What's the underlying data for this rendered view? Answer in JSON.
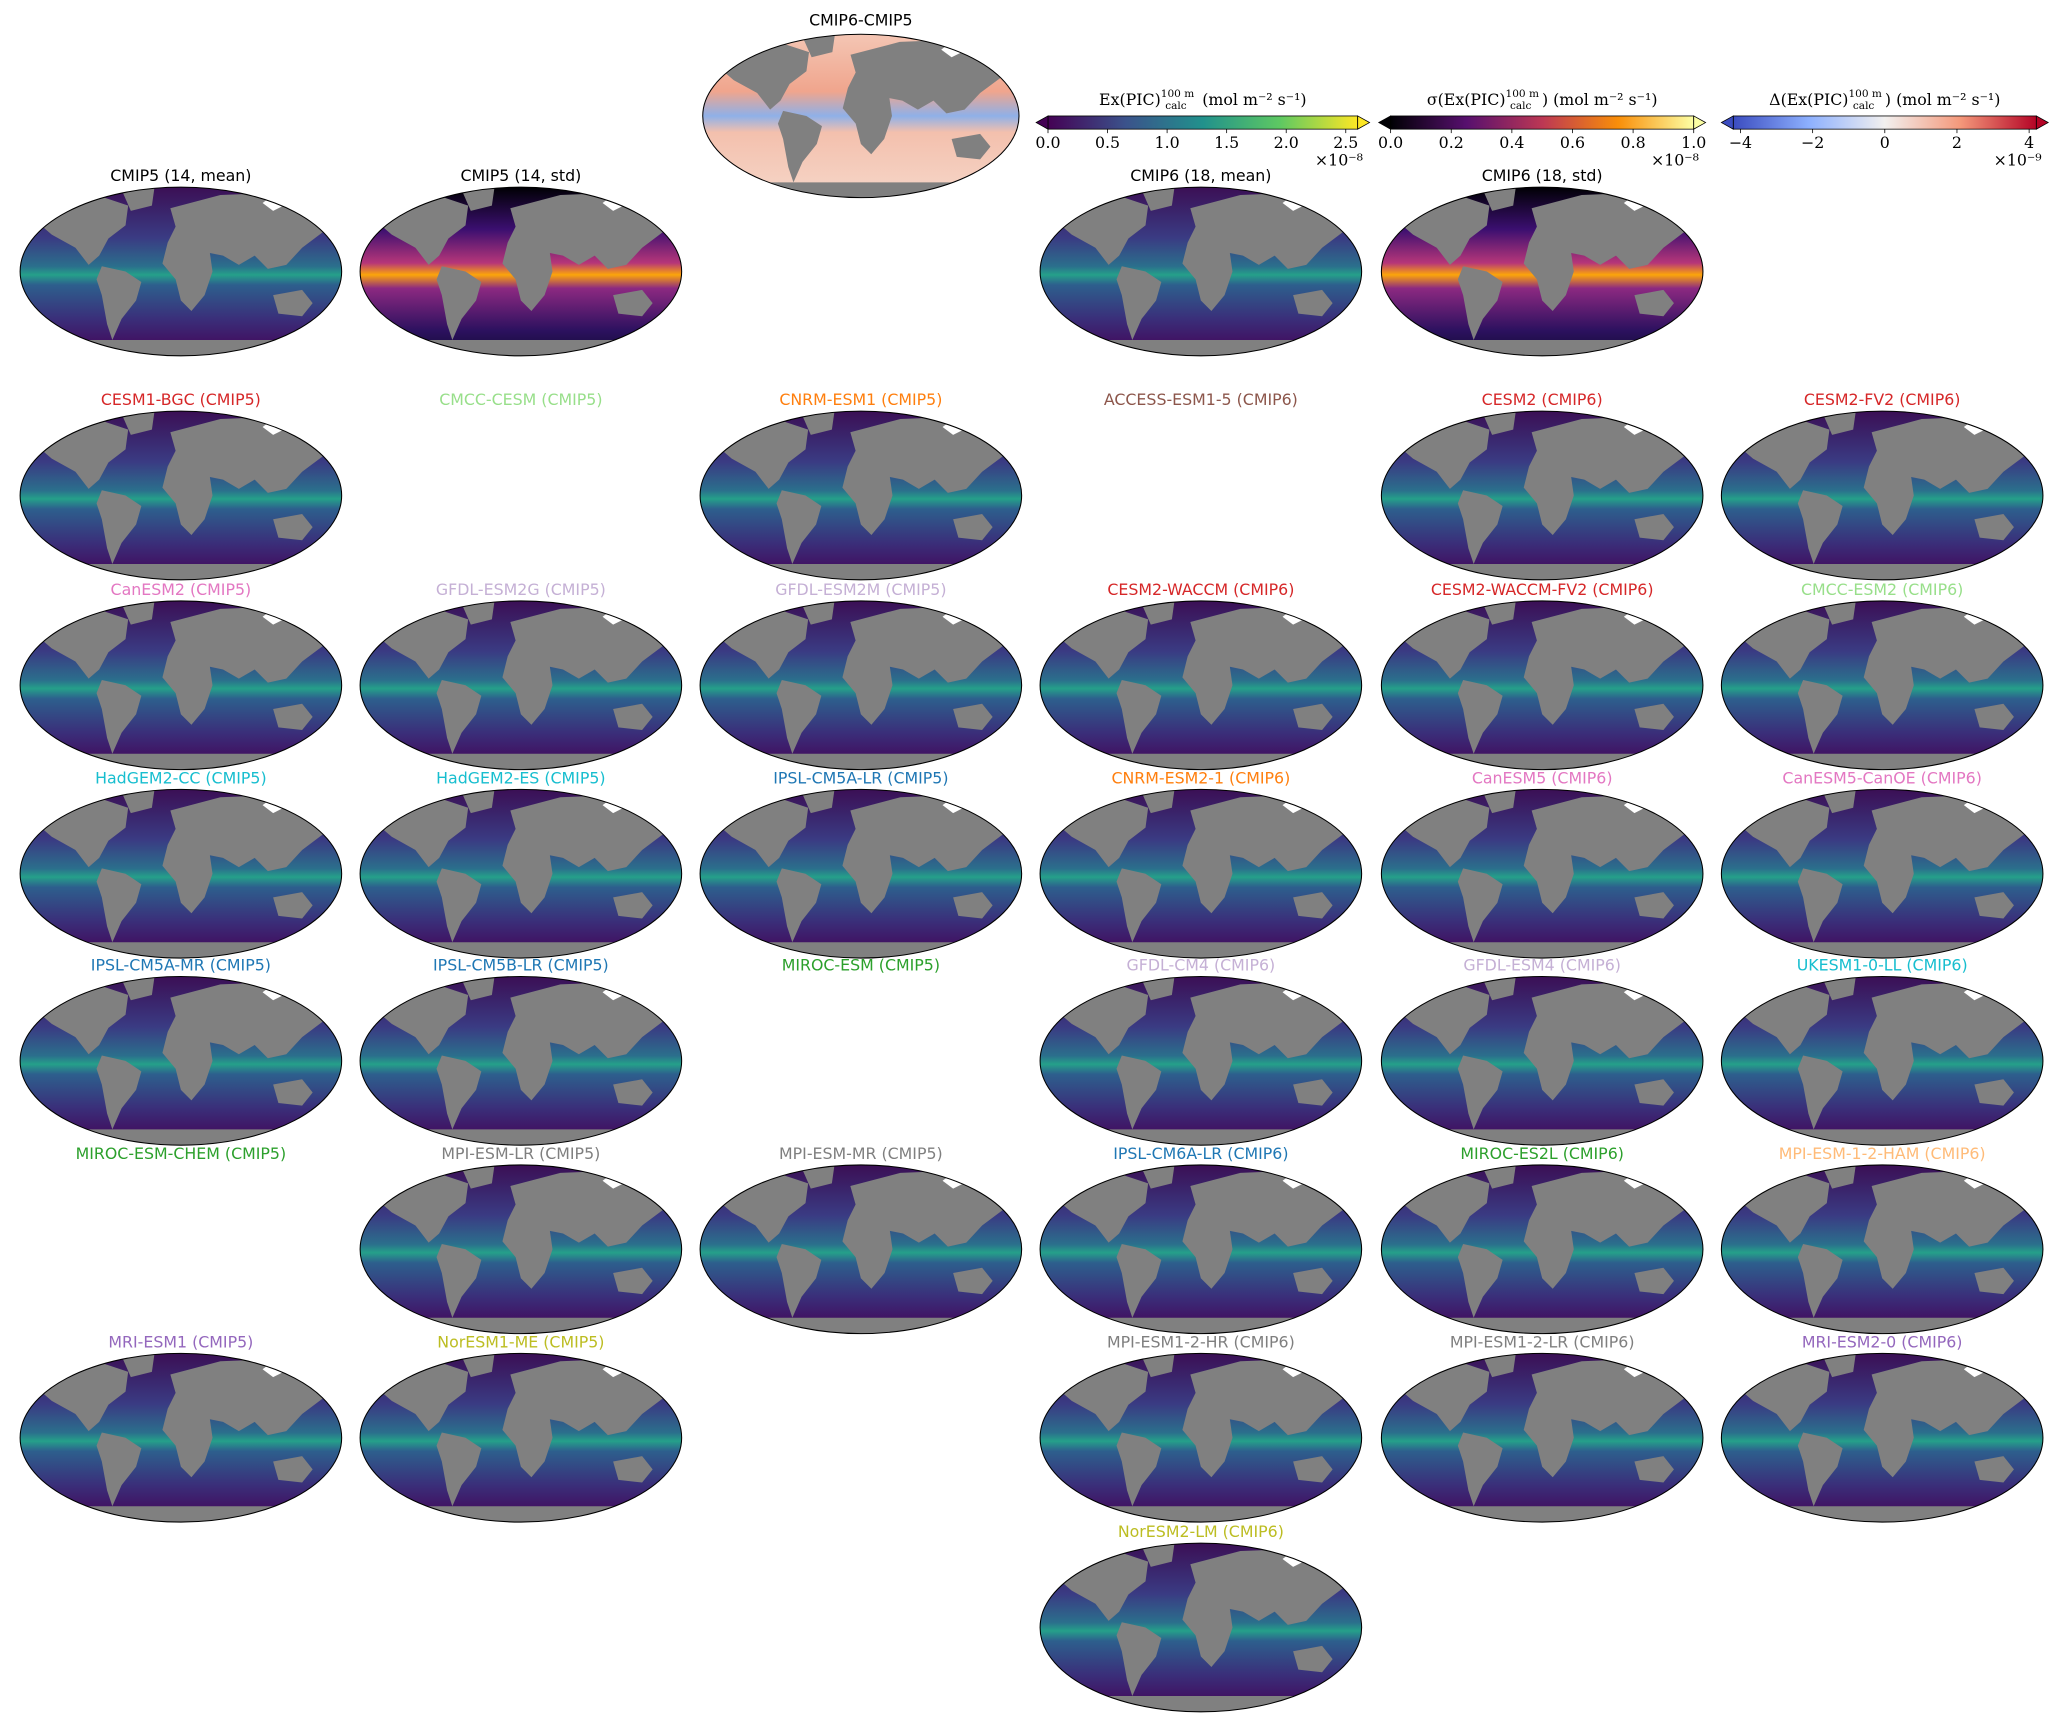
{
  "difference": {
    "title": "CMIP6-CMIP5",
    "cmap": "diff"
  },
  "colorbars": [
    {
      "pre": "Ex(PIC)",
      "sup": "100 m",
      "sub": "calc",
      "post": " (mol m⁻² s⁻¹)",
      "multiplier": "×10⁻⁸",
      "cmap": "viridis",
      "lim": [
        0,
        2.6
      ],
      "ticks": [
        {
          "value": 0,
          "label": "0.0"
        },
        {
          "value": 0.5,
          "label": "0.5"
        },
        {
          "value": 1,
          "label": "1.0"
        },
        {
          "value": 1.5,
          "label": "1.5"
        },
        {
          "value": 2,
          "label": "2.0"
        },
        {
          "value": 2.5,
          "label": "2.5"
        }
      ]
    },
    {
      "pre": "σ(Ex(PIC)",
      "sup": "100 m",
      "sub": "calc",
      "post": ") (mol m⁻² s⁻¹)",
      "multiplier": "×10⁻⁸",
      "cmap": "inferno",
      "lim": [
        0,
        1.0
      ],
      "ticks": [
        {
          "value": 0,
          "label": "0.0"
        },
        {
          "value": 0.2,
          "label": "0.2"
        },
        {
          "value": 0.4,
          "label": "0.4"
        },
        {
          "value": 0.6,
          "label": "0.6"
        },
        {
          "value": 0.8,
          "label": "0.8"
        },
        {
          "value": 1,
          "label": "1.0"
        }
      ]
    },
    {
      "pre": "Δ(Ex(PIC)",
      "sup": "100 m",
      "sub": "calc",
      "post": ") (mol m⁻² s⁻¹)",
      "multiplier": "×10⁻⁹",
      "cmap": "diff",
      "lim": [
        -4.2,
        4.2
      ],
      "ticks": [
        {
          "value": -4,
          "label": "−4"
        },
        {
          "value": -2,
          "label": "−2"
        },
        0,
        2,
        4
      ]
    }
  ],
  "rows": [
    [
      {
        "title": "CMIP5 (14, mean)",
        "color": "#000000",
        "map": true,
        "cmap": "viridis"
      },
      {
        "title": "CMIP5 (14, std)",
        "color": "#000000",
        "map": true,
        "cmap": "inferno"
      },
      null,
      {
        "title": "CMIP6 (18, mean)",
        "color": "#000000",
        "map": true,
        "cmap": "viridis"
      },
      {
        "title": "CMIP6 (18, std)",
        "color": "#000000",
        "map": true,
        "cmap": "inferno"
      },
      null
    ],
    [
      {
        "title": "CESM1-BGC (CMIP5)",
        "color": "#d62728",
        "map": true,
        "cmap": "viridis"
      },
      {
        "title": "CMCC-CESM (CMIP5)",
        "color": "#98df8a",
        "map": false
      },
      {
        "title": "CNRM-ESM1 (CMIP5)",
        "color": "#ff7f0e",
        "map": true,
        "cmap": "viridis"
      },
      {
        "title": "ACCESS-ESM1-5 (CMIP6)",
        "color": "#8c564b",
        "map": false
      },
      {
        "title": "CESM2 (CMIP6)",
        "color": "#d62728",
        "map": true,
        "cmap": "viridis"
      },
      {
        "title": "CESM2-FV2 (CMIP6)",
        "color": "#d62728",
        "map": true,
        "cmap": "viridis"
      }
    ],
    [
      {
        "title": "CanESM2 (CMIP5)",
        "color": "#e377c2",
        "map": true,
        "cmap": "viridis"
      },
      {
        "title": "GFDL-ESM2G (CMIP5)",
        "color": "#c5b0d5",
        "map": true,
        "cmap": "viridis"
      },
      {
        "title": "GFDL-ESM2M (CMIP5)",
        "color": "#c5b0d5",
        "map": true,
        "cmap": "viridis"
      },
      {
        "title": "CESM2-WACCM (CMIP6)",
        "color": "#d62728",
        "map": true,
        "cmap": "viridis"
      },
      {
        "title": "CESM2-WACCM-FV2 (CMIP6)",
        "color": "#d62728",
        "map": true,
        "cmap": "viridis"
      },
      {
        "title": "CMCC-ESM2 (CMIP6)",
        "color": "#98df8a",
        "map": true,
        "cmap": "viridis"
      }
    ],
    [
      {
        "title": "HadGEM2-CC (CMIP5)",
        "color": "#17becf",
        "map": true,
        "cmap": "viridis"
      },
      {
        "title": "HadGEM2-ES (CMIP5)",
        "color": "#17becf",
        "map": true,
        "cmap": "viridis"
      },
      {
        "title": "IPSL-CM5A-LR (CMIP5)",
        "color": "#1f77b4",
        "map": true,
        "cmap": "viridis"
      },
      {
        "title": "CNRM-ESM2-1 (CMIP6)",
        "color": "#ff7f0e",
        "map": true,
        "cmap": "viridis"
      },
      {
        "title": "CanESM5 (CMIP6)",
        "color": "#e377c2",
        "map": true,
        "cmap": "viridis"
      },
      {
        "title": "CanESM5-CanOE (CMIP6)",
        "color": "#e377c2",
        "map": true,
        "cmap": "viridis"
      }
    ],
    [
      {
        "title": "IPSL-CM5A-MR (CMIP5)",
        "color": "#1f77b4",
        "map": true,
        "cmap": "viridis"
      },
      {
        "title": "IPSL-CM5B-LR (CMIP5)",
        "color": "#1f77b4",
        "map": true,
        "cmap": "viridis"
      },
      {
        "title": "MIROC-ESM (CMIP5)",
        "color": "#2ca02c",
        "map": false
      },
      {
        "title": "GFDL-CM4 (CMIP6)",
        "color": "#c5b0d5",
        "map": true,
        "cmap": "viridis"
      },
      {
        "title": "GFDL-ESM4 (CMIP6)",
        "color": "#c5b0d5",
        "map": true,
        "cmap": "viridis"
      },
      {
        "title": "UKESM1-0-LL (CMIP6)",
        "color": "#17becf",
        "map": true,
        "cmap": "viridis"
      }
    ],
    [
      {
        "title": "MIROC-ESM-CHEM (CMIP5)",
        "color": "#2ca02c",
        "map": false
      },
      {
        "title": "MPI-ESM-LR (CMIP5)",
        "color": "#7f7f7f",
        "map": true,
        "cmap": "viridis"
      },
      {
        "title": "MPI-ESM-MR (CMIP5)",
        "color": "#7f7f7f",
        "map": true,
        "cmap": "viridis"
      },
      {
        "title": "IPSL-CM6A-LR (CMIP6)",
        "color": "#1f77b4",
        "map": true,
        "cmap": "viridis"
      },
      {
        "title": "MIROC-ES2L (CMIP6)",
        "color": "#2ca02c",
        "map": true,
        "cmap": "viridis"
      },
      {
        "title": "MPI-ESM-1-2-HAM (CMIP6)",
        "color": "#ffbb78",
        "map": true,
        "cmap": "viridis"
      }
    ],
    [
      {
        "title": "MRI-ESM1 (CMIP5)",
        "color": "#9467bd",
        "map": true,
        "cmap": "viridis"
      },
      {
        "title": "NorESM1-ME (CMIP5)",
        "color": "#bcbd22",
        "map": true,
        "cmap": "viridis"
      },
      null,
      {
        "title": "MPI-ESM1-2-HR (CMIP6)",
        "color": "#7f7f7f",
        "map": true,
        "cmap": "viridis"
      },
      {
        "title": "MPI-ESM1-2-LR (CMIP6)",
        "color": "#7f7f7f",
        "map": true,
        "cmap": "viridis"
      },
      {
        "title": "MRI-ESM2-0 (CMIP6)",
        "color": "#9467bd",
        "map": true,
        "cmap": "viridis"
      }
    ],
    [
      null,
      null,
      null,
      {
        "title": "NorESM2-LM (CMIP6)",
        "color": "#bcbd22",
        "map": true,
        "cmap": "viridis"
      },
      null,
      null
    ]
  ]
}
